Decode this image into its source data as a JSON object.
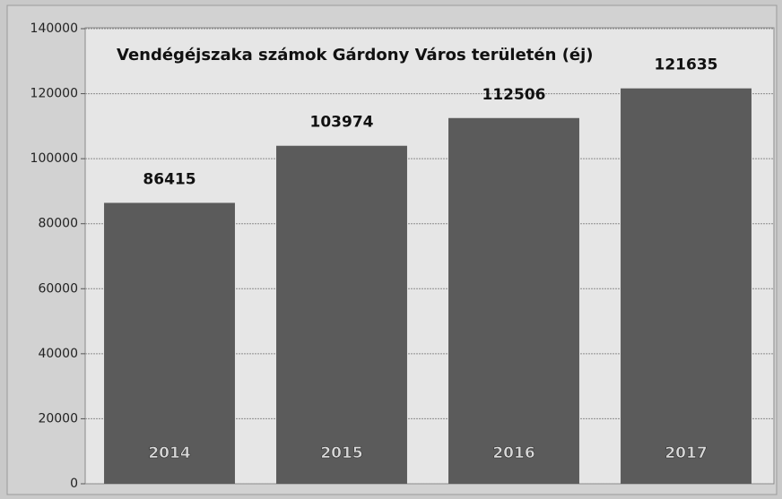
{
  "chart_data": {
    "type": "bar",
    "title": "Vendégéjszaka számok Gárdony Város területén (éj)",
    "categories": [
      "2014",
      "2015",
      "2016",
      "2017"
    ],
    "values": [
      86415,
      103974,
      112506,
      121635
    ],
    "color": "#5b5b5b",
    "ylim": [
      0,
      140000
    ],
    "yticks": [
      0,
      20000,
      40000,
      60000,
      80000,
      100000,
      120000,
      140000
    ],
    "grid": true
  }
}
